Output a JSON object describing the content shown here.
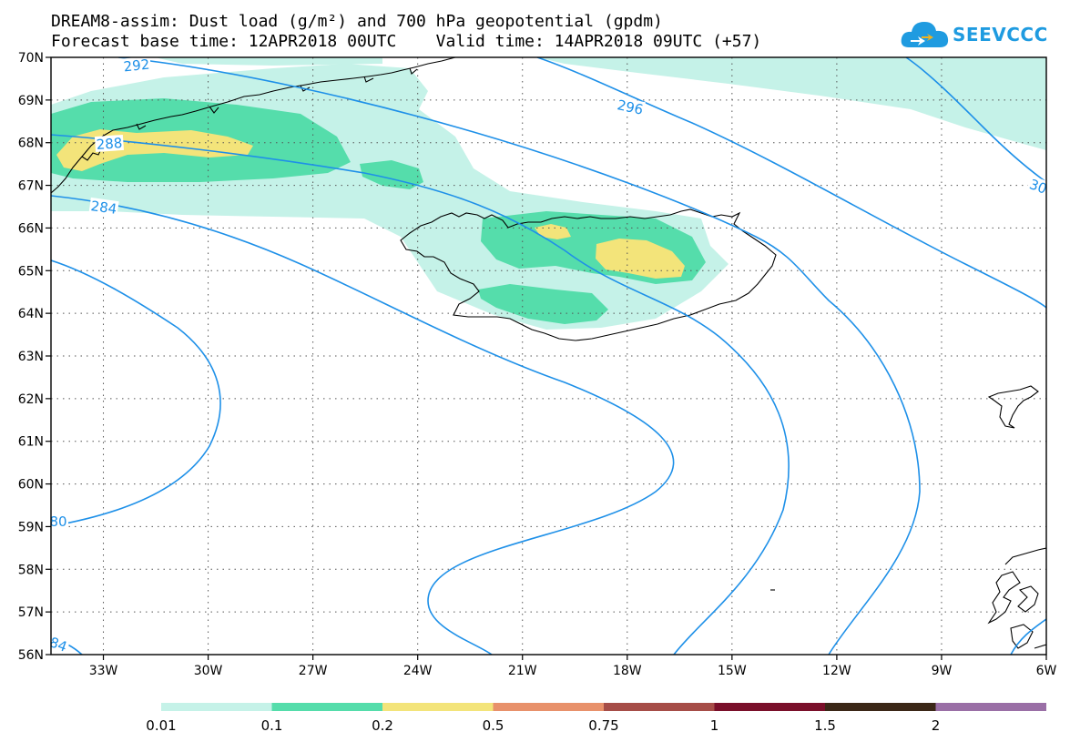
{
  "header": {
    "line1": "DREAM8-assim: Dust load (g/m²) and 700 hPa geopotential (gpdm)",
    "line2": "Forecast base time: 12APR2018 00UTC    Valid time: 14APR2018 09UTC (+57)"
  },
  "logo": {
    "text": "SEEVCCC",
    "icon": "cloud-icon"
  },
  "map": {
    "lon_min": -34.5,
    "lon_max": -6,
    "lat_min": 56,
    "lat_max": 70,
    "lat_ticks": [
      "70N",
      "69N",
      "68N",
      "67N",
      "66N",
      "65N",
      "64N",
      "63N",
      "62N",
      "61N",
      "60N",
      "59N",
      "58N",
      "57N",
      "56N"
    ],
    "lon_ticks": [
      "33W",
      "30W",
      "27W",
      "24W",
      "21W",
      "18W",
      "15W",
      "12W",
      "9W",
      "6W"
    ],
    "contour_labels": [
      "292",
      "296",
      "288",
      "284",
      "80",
      "84",
      "30"
    ],
    "contour_color": "#1e90e8",
    "fill_colors": [
      "#c5f2e8",
      "#55ddab",
      "#f3e47a"
    ]
  },
  "colorbar": {
    "colors": [
      "#c5f2e8",
      "#55ddab",
      "#f3e47a",
      "#e8916b",
      "#a64d48",
      "#7a0f2a",
      "#3b2717",
      "#9a6fa6"
    ],
    "labels": [
      "0.01",
      "0.1",
      "0.2",
      "0.5",
      "0.75",
      "1",
      "1.5",
      "2"
    ]
  }
}
